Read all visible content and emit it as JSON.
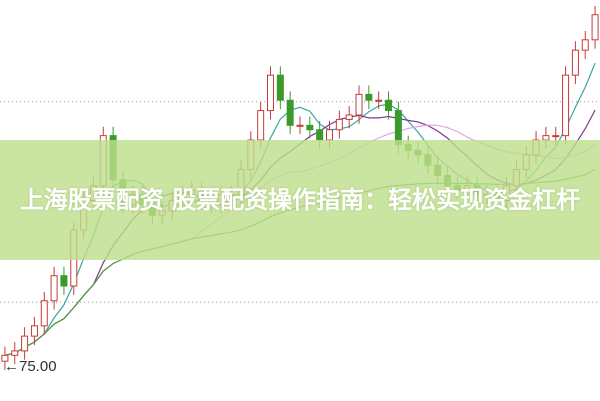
{
  "title": "上海股票配资 股票配资操作指南：轻松实现资金杠杆",
  "chart_data": {
    "type": "candlestick",
    "ylim": [
      72.8,
      100
    ],
    "gridlines": [
      79.5,
      86.3,
      93.1
    ],
    "grid": true,
    "annotation": {
      "label": "75.00",
      "value": 75.0,
      "icon": "arrow-left-icon"
    },
    "close": [
      75.9,
      76.2,
      77.2,
      77.9,
      79.6,
      81.3,
      80.6,
      84.4,
      86.4,
      87.4,
      90.8,
      87.8,
      86.1,
      86.8,
      86.1,
      85.4,
      85.7,
      86.4,
      86.8,
      87.1,
      86.4,
      86.1,
      86.8,
      86.8,
      88.5,
      90.5,
      92.5,
      94.9,
      93.2,
      91.5,
      91.5,
      91.2,
      90.5,
      91.2,
      91.9,
      92.2,
      93.6,
      93.2,
      93.2,
      92.5,
      90.2,
      89.8,
      89.5,
      88.8,
      88.1,
      87.4,
      87.1,
      87.4,
      86.8,
      86.8,
      86.4,
      87.4,
      88.5,
      89.5,
      90.5,
      90.8,
      90.8,
      94.9,
      96.6,
      97.3,
      99.0
    ],
    "moving_averages": [
      {
        "period": 5,
        "color": "#3aa6a0"
      },
      {
        "period": 10,
        "color": "#7a3a8a"
      },
      {
        "period": 20,
        "color": "#e0a8e0"
      },
      {
        "period": 60,
        "color": "#4a9a3a"
      }
    ],
    "colors": {
      "up": "#c83a3a",
      "down": "#3a9a2a",
      "grid": "#999999"
    }
  }
}
